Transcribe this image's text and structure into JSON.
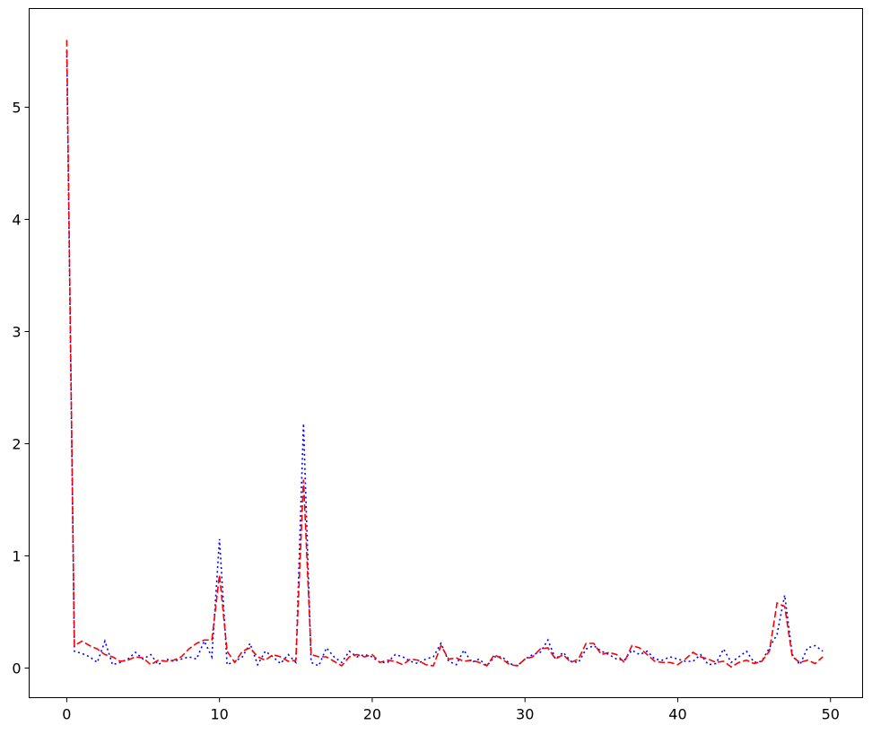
{
  "chart_data": {
    "type": "line",
    "x": [
      0,
      0.5,
      1,
      1.5,
      2,
      2.5,
      3,
      3.5,
      4,
      4.5,
      5,
      5.5,
      6,
      6.5,
      7,
      7.5,
      8,
      8.5,
      9,
      9.5,
      10,
      10.5,
      11,
      11.5,
      12,
      12.5,
      13,
      13.5,
      14,
      14.5,
      15,
      15.5,
      16,
      16.5,
      17,
      17.5,
      18,
      18.5,
      19,
      19.5,
      20,
      20.5,
      21,
      21.5,
      22,
      22.5,
      23,
      23.5,
      24,
      24.5,
      25,
      25.5,
      26,
      26.5,
      27,
      27.5,
      28,
      28.5,
      29,
      29.5,
      30,
      30.5,
      31,
      31.5,
      32,
      32.5,
      33,
      33.5,
      34,
      34.5,
      35,
      35.5,
      36,
      36.5,
      37,
      37.5,
      38,
      38.5,
      39,
      39.5,
      40,
      40.5,
      41,
      41.5,
      42,
      42.5,
      43,
      43.5,
      44,
      44.5,
      45,
      45.5,
      46,
      46.5,
      47,
      47.5,
      48,
      48.5,
      49,
      49.5
    ],
    "series": [
      {
        "color": "blue",
        "linestyle": "dotted",
        "values": [
          5.5,
          0.15,
          0.13,
          0.1,
          0.05,
          0.24,
          0.03,
          0.05,
          0.08,
          0.14,
          0.08,
          0.12,
          0.03,
          0.08,
          0.06,
          0.08,
          0.1,
          0.08,
          0.24,
          0.1,
          1.15,
          0.03,
          0.06,
          0.1,
          0.22,
          0.03,
          0.15,
          0.1,
          0.04,
          0.12,
          0.05,
          2.18,
          0.05,
          0.02,
          0.18,
          0.1,
          0.05,
          0.15,
          0.1,
          0.12,
          0.1,
          0.05,
          0.05,
          0.12,
          0.1,
          0.06,
          0.04,
          0.08,
          0.1,
          0.22,
          0.06,
          0.03,
          0.16,
          0.05,
          0.08,
          0.02,
          0.1,
          0.1,
          0.04,
          0.02,
          0.08,
          0.12,
          0.14,
          0.25,
          0.08,
          0.14,
          0.06,
          0.05,
          0.17,
          0.2,
          0.15,
          0.12,
          0.08,
          0.07,
          0.16,
          0.12,
          0.15,
          0.08,
          0.07,
          0.1,
          0.08,
          0.06,
          0.06,
          0.12,
          0.03,
          0.04,
          0.17,
          0.05,
          0.1,
          0.15,
          0.05,
          0.06,
          0.18,
          0.3,
          0.65,
          0.12,
          0.03,
          0.18,
          0.2,
          0.15
        ]
      },
      {
        "color": "red",
        "linestyle": "dashed",
        "values": [
          5.6,
          0.2,
          0.24,
          0.2,
          0.17,
          0.12,
          0.1,
          0.06,
          0.07,
          0.1,
          0.09,
          0.03,
          0.07,
          0.06,
          0.07,
          0.1,
          0.17,
          0.22,
          0.25,
          0.25,
          0.83,
          0.15,
          0.05,
          0.15,
          0.18,
          0.1,
          0.07,
          0.12,
          0.1,
          0.06,
          0.07,
          1.68,
          0.12,
          0.1,
          0.1,
          0.06,
          0.02,
          0.1,
          0.12,
          0.1,
          0.12,
          0.05,
          0.07,
          0.06,
          0.03,
          0.08,
          0.07,
          0.03,
          0.02,
          0.2,
          0.08,
          0.09,
          0.06,
          0.07,
          0.05,
          0.02,
          0.12,
          0.08,
          0.03,
          0.02,
          0.08,
          0.1,
          0.17,
          0.18,
          0.08,
          0.12,
          0.05,
          0.08,
          0.22,
          0.22,
          0.12,
          0.14,
          0.12,
          0.05,
          0.2,
          0.18,
          0.12,
          0.06,
          0.05,
          0.05,
          0.03,
          0.08,
          0.14,
          0.1,
          0.08,
          0.05,
          0.06,
          0.01,
          0.05,
          0.07,
          0.04,
          0.06,
          0.15,
          0.58,
          0.55,
          0.1,
          0.05,
          0.07,
          0.04,
          0.1
        ]
      }
    ],
    "xlim": [
      -2.46,
      52.1
    ],
    "xticks": [
      0,
      10,
      20,
      30,
      40,
      50
    ],
    "ylim": [
      -0.264,
      5.88
    ],
    "yticks": [
      0,
      1,
      2,
      3,
      4,
      5
    ]
  }
}
